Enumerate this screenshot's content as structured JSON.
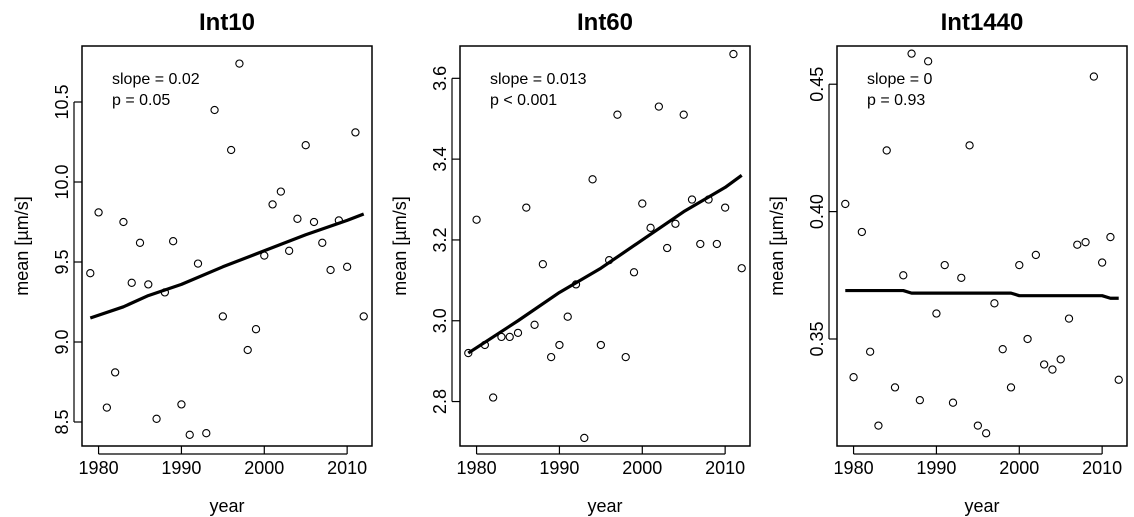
{
  "chart_data": [
    {
      "type": "scatter",
      "title": "Int10",
      "xlabel": "year",
      "ylabel": "mean [µm/s]",
      "xlim": [
        1978,
        2013
      ],
      "ylim": [
        8.35,
        10.85
      ],
      "xticks": [
        "1980",
        "1990",
        "2000",
        "2010"
      ],
      "yticks": [
        "8.5",
        "9.0",
        "9.5",
        "10.0",
        "10.5"
      ],
      "annotations": [
        "slope = 0.02",
        "p = 0.05"
      ],
      "grid": false,
      "legend": "none",
      "x": [
        1979,
        1980,
        1981,
        1982,
        1983,
        1984,
        1985,
        1986,
        1987,
        1988,
        1989,
        1990,
        1991,
        1992,
        1993,
        1994,
        1995,
        1996,
        1997,
        1998,
        1999,
        2000,
        2001,
        2002,
        2003,
        2004,
        2005,
        2006,
        2007,
        2008,
        2009,
        2010,
        2011,
        2012
      ],
      "y": [
        9.43,
        9.81,
        8.59,
        8.81,
        9.75,
        9.37,
        9.62,
        9.36,
        8.52,
        9.31,
        9.63,
        8.61,
        8.42,
        9.49,
        8.43,
        10.45,
        9.16,
        10.2,
        10.74,
        8.95,
        9.08,
        9.54,
        9.86,
        9.94,
        9.57,
        9.77,
        10.23,
        9.75,
        9.62,
        9.45,
        9.76,
        9.47,
        10.31,
        9.16
      ],
      "trend": {
        "x": [
          1979,
          1983,
          1986,
          1990,
          1995,
          2000,
          2005,
          2010,
          2012
        ],
        "y": [
          9.15,
          9.22,
          9.29,
          9.36,
          9.47,
          9.57,
          9.67,
          9.76,
          9.8
        ]
      }
    },
    {
      "type": "scatter",
      "title": "Int60",
      "xlabel": "year",
      "ylabel": "mean [µm/s]",
      "xlim": [
        1978,
        2013
      ],
      "ylim": [
        2.69,
        3.68
      ],
      "xticks": [
        "1980",
        "1990",
        "2000",
        "2010"
      ],
      "yticks": [
        "2.8",
        "3.0",
        "3.2",
        "3.4",
        "3.6"
      ],
      "annotations": [
        "slope = 0.013",
        "p < 0.001"
      ],
      "grid": false,
      "legend": "none",
      "x": [
        1979,
        1980,
        1981,
        1982,
        1983,
        1984,
        1985,
        1986,
        1987,
        1988,
        1989,
        1990,
        1991,
        1992,
        1993,
        1994,
        1995,
        1996,
        1997,
        1998,
        1999,
        2000,
        2001,
        2002,
        2003,
        2004,
        2005,
        2006,
        2007,
        2008,
        2009,
        2010,
        2011,
        2012
      ],
      "y": [
        2.92,
        3.25,
        2.94,
        2.81,
        2.96,
        2.96,
        2.97,
        3.28,
        2.99,
        3.14,
        2.91,
        2.94,
        3.01,
        3.09,
        2.71,
        3.35,
        2.94,
        3.15,
        3.51,
        2.91,
        3.12,
        3.29,
        3.23,
        3.53,
        3.18,
        3.24,
        3.51,
        3.3,
        3.19,
        3.3,
        3.19,
        3.28,
        3.66,
        3.13
      ],
      "trend": {
        "x": [
          1979,
          1982,
          1985,
          1990,
          1995,
          2000,
          2005,
          2010,
          2012
        ],
        "y": [
          2.92,
          2.96,
          3.0,
          3.07,
          3.13,
          3.2,
          3.27,
          3.33,
          3.36
        ]
      }
    },
    {
      "type": "scatter",
      "title": "Int1440",
      "xlabel": "year",
      "ylabel": "mean [µm/s]",
      "xlim": [
        1978,
        2013
      ],
      "ylim": [
        0.308,
        0.465
      ],
      "xticks": [
        "1980",
        "1990",
        "2000",
        "2010"
      ],
      "yticks": [
        "0.35",
        "0.40",
        "0.45"
      ],
      "annotations": [
        "slope = 0",
        "p = 0.93"
      ],
      "grid": false,
      "legend": "none",
      "x": [
        1979,
        1980,
        1981,
        1982,
        1983,
        1984,
        1985,
        1986,
        1987,
        1988,
        1989,
        1990,
        1991,
        1992,
        1993,
        1994,
        1995,
        1996,
        1997,
        1998,
        1999,
        2000,
        2001,
        2002,
        2003,
        2004,
        2005,
        2006,
        2007,
        2008,
        2009,
        2010,
        2011,
        2012
      ],
      "y": [
        0.403,
        0.335,
        0.392,
        0.345,
        0.316,
        0.424,
        0.331,
        0.375,
        0.462,
        0.326,
        0.459,
        0.36,
        0.379,
        0.325,
        0.374,
        0.426,
        0.316,
        0.313,
        0.364,
        0.346,
        0.331,
        0.379,
        0.35,
        0.383,
        0.34,
        0.338,
        0.342,
        0.358,
        0.387,
        0.388,
        0.453,
        0.38,
        0.39,
        0.334
      ],
      "trend": {
        "x": [
          1979,
          1986,
          1987,
          1999,
          2000,
          2010,
          2011,
          2012
        ],
        "y": [
          0.369,
          0.369,
          0.368,
          0.368,
          0.367,
          0.367,
          0.366,
          0.366
        ]
      }
    }
  ]
}
